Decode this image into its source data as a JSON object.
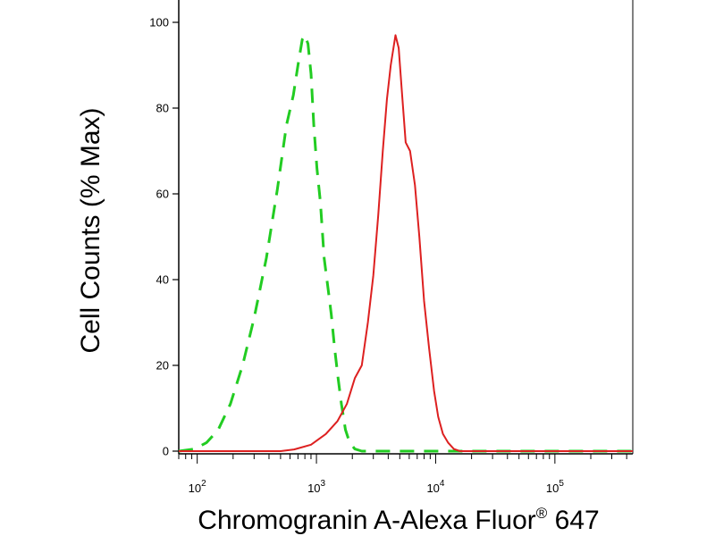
{
  "chart_data": {
    "type": "line",
    "title": "",
    "xlabel": "Chromogranin A-Alexa Fluor",
    "xlabel_superscript": "®",
    "xlabel_suffix": " 647",
    "ylabel": "Cell Counts (% Max)",
    "x_scale": "log",
    "xlim": [
      70,
      450000
    ],
    "ylim": [
      0,
      100
    ],
    "y_ticks": [
      {
        "value": 0,
        "label": "0"
      },
      {
        "value": 20,
        "label": "20"
      },
      {
        "value": 40,
        "label": "40"
      },
      {
        "value": 60,
        "label": "60"
      },
      {
        "value": 80,
        "label": "80"
      },
      {
        "value": 100,
        "label": "100"
      }
    ],
    "x_ticks": [
      {
        "value": 100,
        "base": "10",
        "exp": "2"
      },
      {
        "value": 1000,
        "base": "10",
        "exp": "3"
      },
      {
        "value": 10000,
        "base": "10",
        "exp": "4"
      },
      {
        "value": 100000,
        "base": "10",
        "exp": "5"
      }
    ],
    "grid": false,
    "legend": "none",
    "series": [
      {
        "color": "#22cc22",
        "dash": "dashed",
        "points": [
          [
            70,
            0
          ],
          [
            95,
            0.5
          ],
          [
            120,
            2
          ],
          [
            150,
            5
          ],
          [
            190,
            11
          ],
          [
            240,
            20
          ],
          [
            300,
            31
          ],
          [
            380,
            45
          ],
          [
            470,
            61
          ],
          [
            560,
            76
          ],
          [
            640,
            83
          ],
          [
            700,
            90
          ],
          [
            760,
            96
          ],
          [
            800,
            97
          ],
          [
            850,
            95
          ],
          [
            900,
            88
          ],
          [
            950,
            76
          ],
          [
            1010,
            66
          ],
          [
            1080,
            58
          ],
          [
            1160,
            45
          ],
          [
            1250,
            38
          ],
          [
            1330,
            32
          ],
          [
            1420,
            24
          ],
          [
            1520,
            17
          ],
          [
            1620,
            11
          ],
          [
            1750,
            5
          ],
          [
            1900,
            2
          ],
          [
            2100,
            0.5
          ],
          [
            2400,
            0
          ],
          [
            450000,
            0
          ]
        ]
      },
      {
        "color": "#dd2020",
        "dash": "solid",
        "points": [
          [
            70,
            0
          ],
          [
            500,
            0
          ],
          [
            650,
            0.4
          ],
          [
            900,
            1.5
          ],
          [
            1200,
            4
          ],
          [
            1500,
            7
          ],
          [
            1800,
            11
          ],
          [
            2100,
            17
          ],
          [
            2400,
            20
          ],
          [
            2700,
            30
          ],
          [
            3000,
            41
          ],
          [
            3300,
            55
          ],
          [
            3600,
            70
          ],
          [
            3900,
            82
          ],
          [
            4200,
            90
          ],
          [
            4600,
            97
          ],
          [
            4900,
            94
          ],
          [
            5200,
            84
          ],
          [
            5600,
            72
          ],
          [
            6100,
            70
          ],
          [
            6700,
            62
          ],
          [
            7300,
            50
          ],
          [
            8000,
            35
          ],
          [
            8800,
            24
          ],
          [
            9700,
            14
          ],
          [
            10500,
            8
          ],
          [
            11500,
            4
          ],
          [
            12700,
            2
          ],
          [
            14200,
            0.5
          ],
          [
            16000,
            0
          ],
          [
            450000,
            0
          ]
        ]
      }
    ]
  }
}
